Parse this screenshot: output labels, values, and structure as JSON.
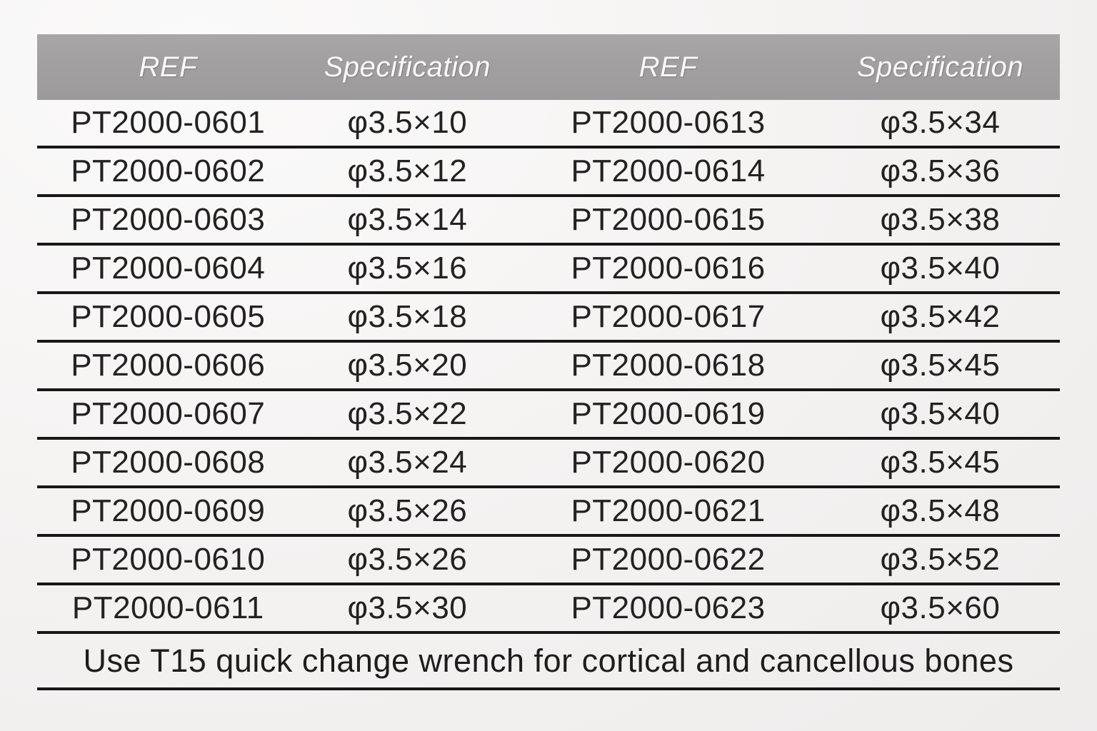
{
  "table": {
    "headers": [
      {
        "label": "REF"
      },
      {
        "label": "Specification"
      },
      {
        "label": "REF"
      },
      {
        "label": "Specification"
      }
    ],
    "rows": [
      {
        "ref_left": "PT2000-0601",
        "spec_left": "φ3.5×10",
        "ref_right": "PT2000-0613",
        "spec_right": "φ3.5×34"
      },
      {
        "ref_left": "PT2000-0602",
        "spec_left": "φ3.5×12",
        "ref_right": "PT2000-0614",
        "spec_right": "φ3.5×36"
      },
      {
        "ref_left": "PT2000-0603",
        "spec_left": "φ3.5×14",
        "ref_right": "PT2000-0615",
        "spec_right": "φ3.5×38"
      },
      {
        "ref_left": "PT2000-0604",
        "spec_left": "φ3.5×16",
        "ref_right": "PT2000-0616",
        "spec_right": "φ3.5×40"
      },
      {
        "ref_left": "PT2000-0605",
        "spec_left": "φ3.5×18",
        "ref_right": "PT2000-0617",
        "spec_right": "φ3.5×42"
      },
      {
        "ref_left": "PT2000-0606",
        "spec_left": "φ3.5×20",
        "ref_right": "PT2000-0618",
        "spec_right": "φ3.5×45"
      },
      {
        "ref_left": "PT2000-0607",
        "spec_left": "φ3.5×22",
        "ref_right": "PT2000-0619",
        "spec_right": "φ3.5×40"
      },
      {
        "ref_left": "PT2000-0608",
        "spec_left": "φ3.5×24",
        "ref_right": "PT2000-0620",
        "spec_right": "φ3.5×45"
      },
      {
        "ref_left": "PT2000-0609",
        "spec_left": "φ3.5×26",
        "ref_right": "PT2000-0621",
        "spec_right": "φ3.5×48"
      },
      {
        "ref_left": "PT2000-0610",
        "spec_left": "φ3.5×26",
        "ref_right": "PT2000-0622",
        "spec_right": "φ3.5×52"
      },
      {
        "ref_left": "PT2000-0611",
        "spec_left": "φ3.5×30",
        "ref_right": "PT2000-0623",
        "spec_right": "φ3.5×60"
      }
    ],
    "footnote": "Use T15 quick change wrench for cortical and cancellous bones",
    "colors": {
      "header_bg": "#a19fa0",
      "header_text": "#fafafa",
      "body_text": "#222222",
      "rule_line": "#171717",
      "page_bg": "#f3f1f0"
    }
  }
}
